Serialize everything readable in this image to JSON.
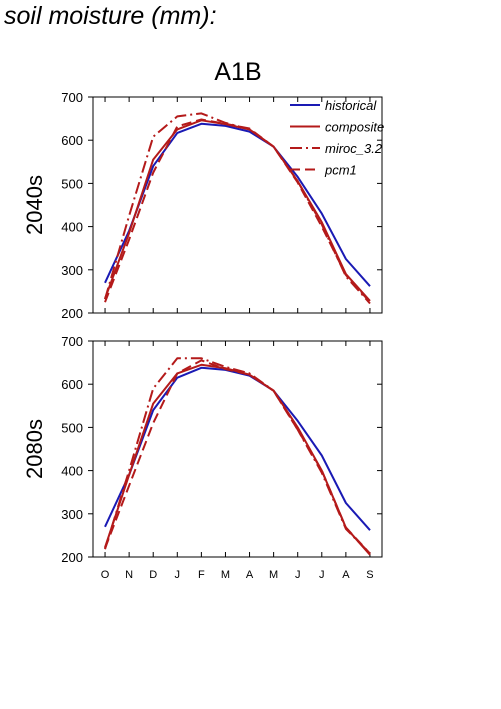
{
  "page": {
    "title": "soil moisture (mm):"
  },
  "scenario": "A1B",
  "chart_data": [
    {
      "type": "line",
      "panel_label": "2040s",
      "x": [
        "O",
        "N",
        "D",
        "J",
        "F",
        "M",
        "A",
        "M",
        "J",
        "J",
        "A",
        "S"
      ],
      "ylim": [
        200,
        700
      ],
      "yticks": [
        200,
        300,
        400,
        500,
        600,
        700
      ],
      "legend_position": "top-right",
      "series": [
        {
          "name": "historical",
          "color": "#1a1ab4",
          "style": "solid",
          "values": [
            270,
            390,
            540,
            617,
            638,
            633,
            620,
            585,
            515,
            430,
            325,
            262
          ]
        },
        {
          "name": "composite",
          "color": "#b41a1a",
          "style": "solid",
          "values": [
            233,
            385,
            555,
            625,
            646,
            637,
            625,
            585,
            505,
            410,
            290,
            228
          ]
        },
        {
          "name": "miroc_3.2",
          "color": "#b41a1a",
          "style": "dashdot",
          "values": [
            232,
            425,
            608,
            655,
            662,
            640,
            625,
            585,
            505,
            405,
            285,
            222
          ]
        },
        {
          "name": "pcm1",
          "color": "#b41a1a",
          "style": "dashed",
          "values": [
            225,
            370,
            525,
            632,
            648,
            638,
            627,
            585,
            502,
            400,
            288,
            225
          ]
        }
      ]
    },
    {
      "type": "line",
      "panel_label": "2080s",
      "x": [
        "O",
        "N",
        "D",
        "J",
        "F",
        "M",
        "A",
        "M",
        "J",
        "J",
        "A",
        "S"
      ],
      "ylim": [
        200,
        700
      ],
      "yticks": [
        200,
        300,
        400,
        500,
        600,
        700
      ],
      "series": [
        {
          "name": "historical",
          "color": "#1a1ab4",
          "style": "solid",
          "values": [
            270,
            390,
            540,
            615,
            638,
            633,
            620,
            585,
            515,
            435,
            325,
            262
          ]
        },
        {
          "name": "composite",
          "color": "#b41a1a",
          "style": "solid",
          "values": [
            222,
            390,
            555,
            625,
            645,
            637,
            622,
            585,
            500,
            400,
            268,
            205
          ]
        },
        {
          "name": "miroc_3.2",
          "color": "#b41a1a",
          "style": "dashdot",
          "values": [
            218,
            400,
            590,
            660,
            660,
            640,
            625,
            585,
            495,
            395,
            265,
            208
          ]
        },
        {
          "name": "pcm1",
          "color": "#b41a1a",
          "style": "dashed",
          "values": [
            220,
            365,
            510,
            625,
            655,
            635,
            622,
            585,
            495,
            400,
            268,
            208
          ]
        }
      ]
    }
  ]
}
